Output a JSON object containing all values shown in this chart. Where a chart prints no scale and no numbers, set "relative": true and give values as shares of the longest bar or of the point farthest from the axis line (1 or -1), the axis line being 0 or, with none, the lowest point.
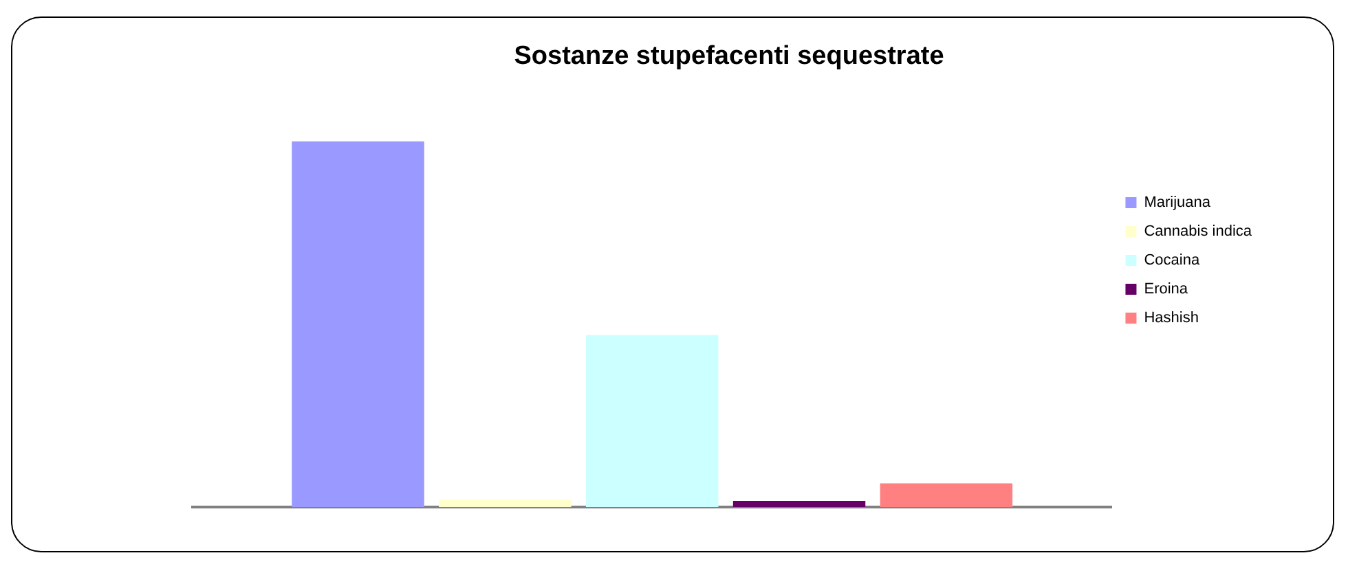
{
  "chart_data": {
    "type": "bar",
    "title": "Sostanze stupefacenti sequestrate",
    "relative": true,
    "categories": [
      null
    ],
    "legend": "right",
    "series": [
      {
        "name": "Marijuana",
        "color": "#9999ff",
        "values": [
          1
        ]
      },
      {
        "name": "Cannabis indica",
        "color": "#ffffcc",
        "values": [
          0.02
        ]
      },
      {
        "name": "Cocaina",
        "color": "#ccffff",
        "values": [
          0.47
        ]
      },
      {
        "name": "Eroina",
        "color": "#660066",
        "values": [
          0.017
        ]
      },
      {
        "name": "Hashish",
        "color": "#ff8080",
        "values": [
          0.065
        ]
      }
    ]
  }
}
